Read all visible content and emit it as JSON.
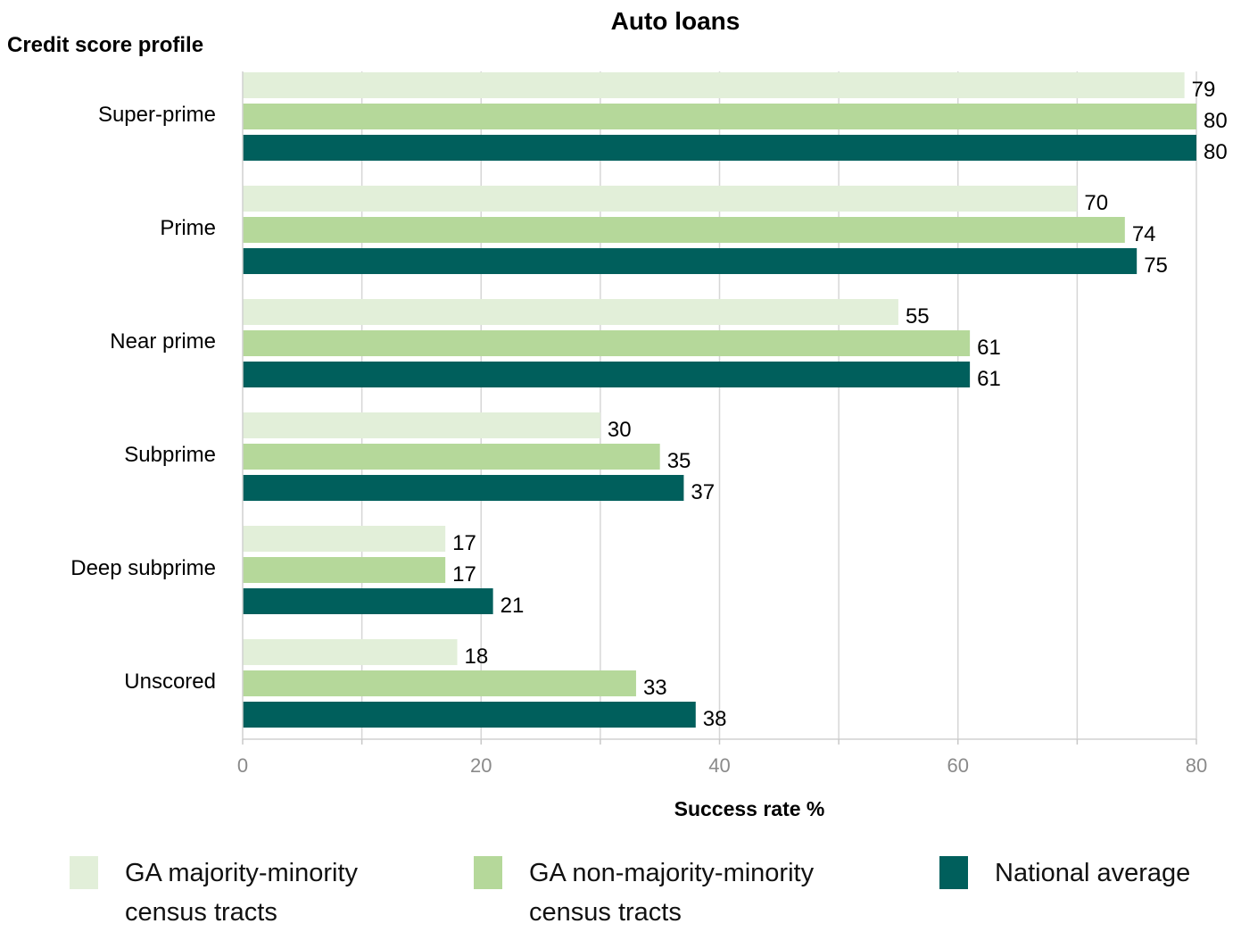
{
  "chart_data": {
    "type": "bar",
    "orientation": "horizontal",
    "title": "Auto loans",
    "ylabel": "Credit score profile",
    "xlabel": "Success rate %",
    "categories": [
      "Super-prime",
      "Prime",
      "Near prime",
      "Subprime",
      "Deep subprime",
      "Unscored"
    ],
    "series": [
      {
        "name": "GA majority-minority census tracts",
        "color": "#e2efd9",
        "values": [
          79,
          70,
          55,
          30,
          17,
          18
        ]
      },
      {
        "name": "GA non-majority-minority census tracts",
        "color": "#b5d89a",
        "values": [
          80,
          74,
          61,
          35,
          17,
          33
        ]
      },
      {
        "name": "National average",
        "color": "#005f5c",
        "values": [
          80,
          75,
          61,
          37,
          21,
          38
        ]
      }
    ],
    "xlim": [
      0,
      80
    ],
    "xticks": [
      0,
      20,
      40,
      60,
      80
    ],
    "grid": true,
    "legend_position": "bottom"
  },
  "legend": {
    "items": [
      {
        "line1": "GA majority-minority",
        "line2": "census tracts",
        "color": "#e2efd9"
      },
      {
        "line1": "GA non-majority-minority",
        "line2": "census tracts",
        "color": "#b5d89a"
      },
      {
        "line1": "National average",
        "line2": "",
        "color": "#005f5c"
      }
    ]
  }
}
